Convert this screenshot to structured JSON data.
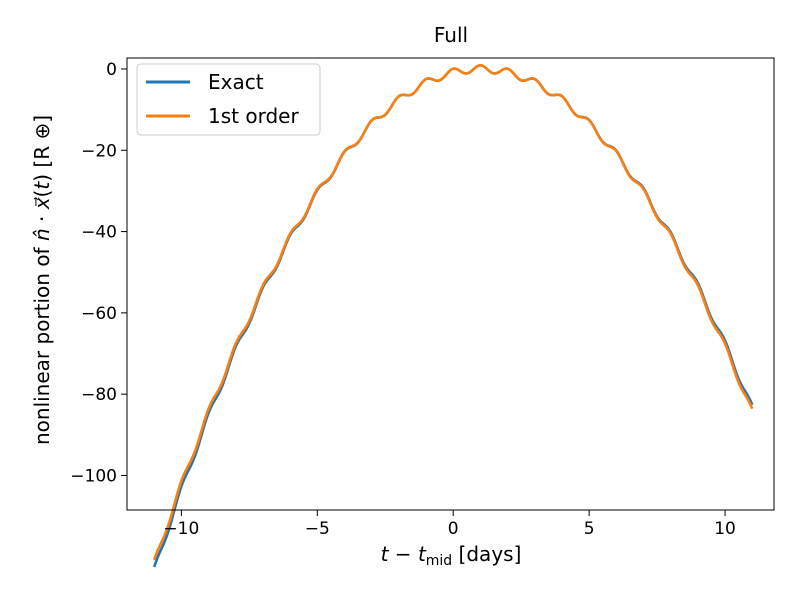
{
  "chart_data": {
    "type": "line",
    "title": "Full",
    "xlabel": "t − t_mid [days]",
    "xlabel_parts": {
      "t": "t",
      "minus": " − ",
      "tsub": "t",
      "sub": "mid",
      "units": " [days]"
    },
    "ylabel": "nonlinear portion of n̂ · x⃗(t) [R ⊕]",
    "ylabel_parts": {
      "prefix": "nonlinear portion of ",
      "n": "n̂",
      "dot": " · ",
      "x": "x⃗",
      "paren": "(",
      "t": "t",
      "close": ")",
      "units": " [R ⊕]"
    },
    "xlim": [
      -12.0,
      11.8
    ],
    "ylim": [
      -108.5,
      2.7
    ],
    "xticks": [
      -10,
      -5,
      0,
      5,
      10
    ],
    "yticks": [
      0,
      -20,
      -40,
      -60,
      -80,
      -100
    ],
    "xtick_labels": [
      "−10",
      "−5",
      "0",
      "5",
      "10"
    ],
    "ytick_labels": [
      "0",
      "−20",
      "−40",
      "−60",
      "−80",
      "−100"
    ],
    "legend_placement": "upper-left",
    "grid": false,
    "model": {
      "x_range": [
        -11,
        11
      ],
      "t_peak": 1.0,
      "quadratic_coeff": -0.845,
      "wiggle_amplitude": 0.9,
      "wiggle_period": 1.0
    },
    "series": [
      {
        "name": "Exact",
        "color": "#1f77b4",
        "end_offset": 1.0
      },
      {
        "name": "1st order",
        "color": "#ff7f0e",
        "end_offset": 0.0
      }
    ]
  }
}
